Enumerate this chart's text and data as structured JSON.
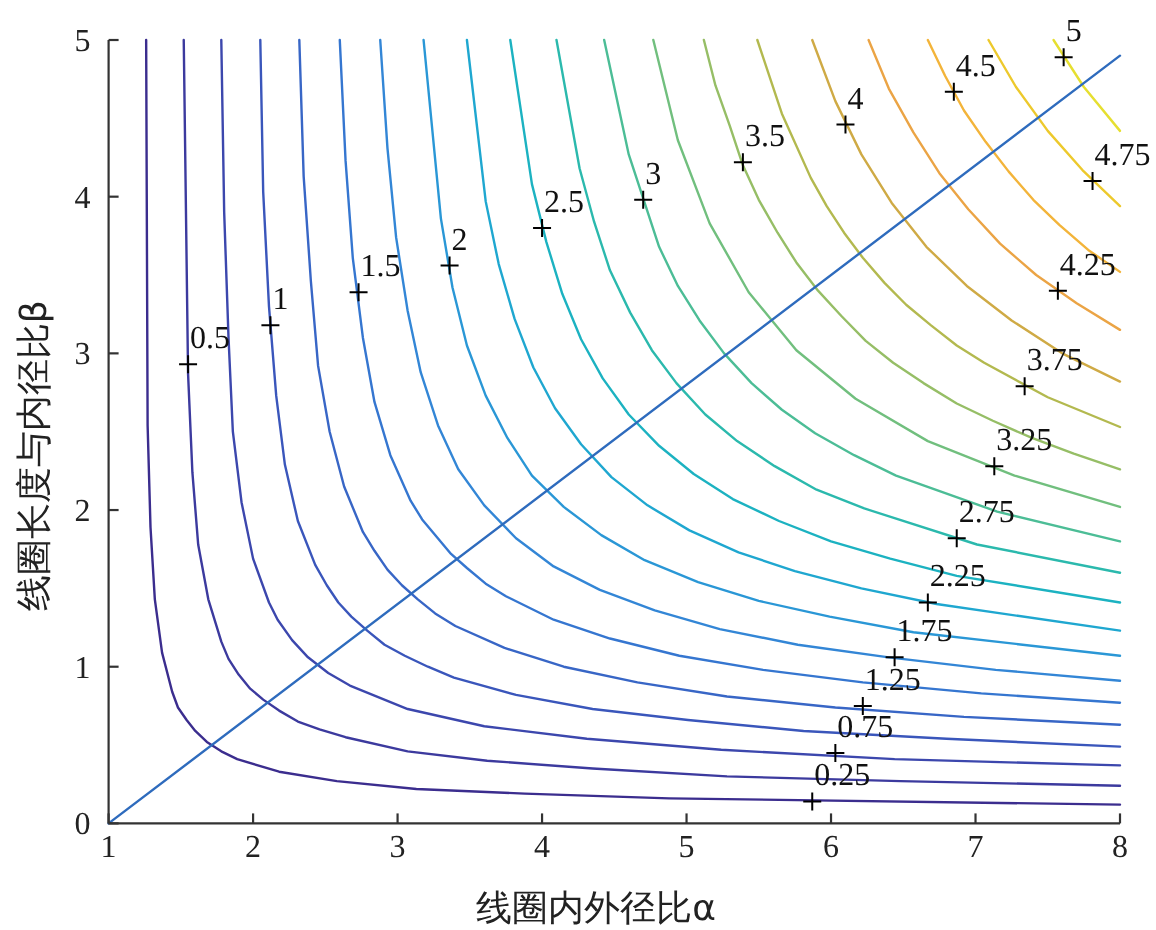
{
  "chart_data": {
    "type": "line",
    "xlabel": "线圈内外径比α",
    "ylabel": "线圈长度与内径比β",
    "xlim": [
      1,
      8
    ],
    "ylim": [
      0,
      5
    ],
    "xticks": [
      1,
      2,
      3,
      4,
      5,
      6,
      7,
      8
    ],
    "yticks": [
      0,
      1,
      2,
      3,
      4,
      5
    ],
    "series": [
      {
        "color": "#3b2d8e",
        "x": [
          1.26,
          1.27,
          1.29,
          1.32,
          1.37,
          1.44,
          1.48,
          1.54,
          1.6,
          1.68,
          1.78,
          1.89,
          2.18,
          2.58,
          3.13,
          3.88,
          4.88,
          8
        ],
        "values": [
          5,
          2.54,
          1.89,
          1.43,
          1.09,
          0.84,
          0.74,
          0.66,
          0.59,
          0.52,
          0.46,
          0.41,
          0.33,
          0.27,
          0.22,
          0.19,
          0.16,
          0.12
        ]
      },
      {
        "color": "#3c3a9e",
        "x": [
          1.52,
          1.55,
          1.58,
          1.62,
          1.69,
          1.78,
          1.83,
          1.9,
          1.98,
          2.07,
          2.18,
          2.31,
          2.46,
          2.64,
          3.07,
          3.62,
          4.35,
          5.28,
          6.48,
          8
        ],
        "values": [
          5,
          2.87,
          2.24,
          1.78,
          1.43,
          1.16,
          1.05,
          0.95,
          0.86,
          0.79,
          0.72,
          0.65,
          0.6,
          0.55,
          0.46,
          0.4,
          0.35,
          0.3,
          0.27,
          0.24
        ]
      },
      {
        "color": "#3c47ad",
        "x": [
          1.78,
          1.8,
          1.83,
          1.86,
          1.92,
          2,
          2.11,
          2.17,
          2.27,
          2.38,
          2.52,
          2.67,
          3.07,
          3.6,
          4.31,
          5.24,
          6.44,
          8
        ],
        "values": [
          5,
          3.9,
          3.1,
          2.5,
          2.05,
          1.69,
          1.41,
          1.3,
          1.17,
          1.06,
          0.96,
          0.88,
          0.73,
          0.62,
          0.54,
          0.47,
          0.41,
          0.37
        ]
      },
      {
        "color": "#3a56bb",
        "x": [
          2.05,
          2.07,
          2.11,
          2.16,
          2.22,
          2.31,
          2.43,
          2.51,
          2.59,
          2.68,
          2.79,
          2.91,
          3.05,
          3.21,
          3.39,
          3.82,
          4.35,
          5.01,
          5.81,
          6.8,
          8
        ],
        "values": [
          5,
          4.03,
          3.3,
          2.73,
          2.29,
          1.93,
          1.65,
          1.52,
          1.41,
          1.32,
          1.23,
          1.14,
          1.07,
          1,
          0.93,
          0.82,
          0.73,
          0.66,
          0.59,
          0.54,
          0.49
        ]
      },
      {
        "color": "#3866c6",
        "x": [
          2.32,
          2.35,
          2.4,
          2.45,
          2.53,
          2.63,
          2.76,
          2.84,
          2.93,
          3.03,
          3.14,
          3.26,
          3.4,
          3.74,
          4.15,
          4.66,
          5.28,
          6.03,
          6.92,
          8
        ],
        "values": [
          5,
          4.13,
          3.46,
          2.92,
          2.5,
          2.15,
          1.86,
          1.74,
          1.62,
          1.52,
          1.43,
          1.34,
          1.26,
          1.12,
          1,
          0.9,
          0.81,
          0.74,
          0.68,
          0.63
        ]
      },
      {
        "color": "#3576d0",
        "x": [
          2.6,
          2.64,
          2.69,
          2.76,
          2.84,
          2.95,
          3.09,
          3.17,
          3.27,
          3.37,
          3.48,
          3.61,
          3.75,
          4.08,
          4.47,
          4.95,
          5.53,
          6.22,
          7.04,
          8
        ],
        "values": [
          5,
          4.23,
          3.61,
          3.1,
          2.69,
          2.35,
          2.06,
          1.94,
          1.83,
          1.72,
          1.63,
          1.53,
          1.45,
          1.3,
          1.18,
          1.07,
          0.98,
          0.9,
          0.83,
          0.77
        ]
      },
      {
        "color": "#3386d6",
        "x": [
          2.88,
          2.93,
          2.99,
          3.07,
          3.16,
          3.28,
          3.42,
          3.6,
          3.82,
          4.08,
          4.4,
          4.78,
          5.23,
          5.77,
          6.4,
          7.14,
          8
        ],
        "values": [
          5,
          4.31,
          3.74,
          3.27,
          2.88,
          2.54,
          2.26,
          2.03,
          1.82,
          1.64,
          1.49,
          1.36,
          1.24,
          1.14,
          1.06,
          0.98,
          0.91
        ]
      },
      {
        "color": "#2a97d6",
        "x": [
          3.18,
          3.3,
          3.38,
          3.48,
          3.61,
          3.76,
          3.93,
          4.15,
          4.41,
          4.71,
          5.08,
          5.5,
          5.99,
          6.57,
          8
        ],
        "values": [
          5,
          3.86,
          3.42,
          3.05,
          2.73,
          2.46,
          2.22,
          2.02,
          1.84,
          1.68,
          1.54,
          1.42,
          1.32,
          1.22,
          1.07
        ]
      },
      {
        "color": "#1fa7d0",
        "x": [
          3.48,
          3.61,
          3.7,
          3.81,
          3.94,
          4.09,
          4.27,
          4.48,
          4.73,
          5.02,
          5.36,
          5.75,
          6.21,
          6.73,
          8
        ],
        "values": [
          5,
          3.97,
          3.57,
          3.22,
          2.91,
          2.65,
          2.42,
          2.21,
          2.03,
          1.87,
          1.73,
          1.61,
          1.5,
          1.4,
          1.23
        ]
      },
      {
        "color": "#1cb2c1",
        "x": [
          3.78,
          3.93,
          4.03,
          4.14,
          4.27,
          4.42,
          4.6,
          4.81,
          5.05,
          5.32,
          5.64,
          6,
          6.41,
          6.87,
          8
        ],
        "values": [
          5,
          4.08,
          3.71,
          3.38,
          3.09,
          2.84,
          2.61,
          2.41,
          2.23,
          2.07,
          1.93,
          1.8,
          1.69,
          1.58,
          1.41
        ]
      },
      {
        "color": "#2bb9ad",
        "x": [
          4.1,
          4.26,
          4.36,
          4.47,
          4.61,
          4.76,
          4.93,
          5.13,
          5.35,
          5.61,
          5.9,
          6.23,
          7.01,
          8
        ],
        "values": [
          5,
          4.18,
          3.84,
          3.53,
          3.26,
          3.02,
          2.81,
          2.61,
          2.44,
          2.28,
          2.13,
          2.01,
          1.78,
          1.6
        ]
      },
      {
        "color": "#4cbd96",
        "x": [
          4.43,
          4.6,
          4.81,
          4.94,
          5.09,
          5.26,
          5.45,
          5.66,
          5.89,
          6.16,
          6.45,
          7.15,
          8
        ],
        "values": [
          5,
          4.27,
          3.68,
          3.43,
          3.21,
          3,
          2.81,
          2.64,
          2.49,
          2.35,
          2.22,
          1.99,
          1.8
        ]
      },
      {
        "color": "#71bf7e",
        "x": [
          4.77,
          4.94,
          5.16,
          5.43,
          5.76,
          6.17,
          6.67,
          7.27,
          8
        ],
        "values": [
          5,
          4.36,
          3.83,
          3.39,
          3.02,
          2.71,
          2.44,
          2.22,
          2.02
        ]
      },
      {
        "color": "#96be66",
        "x": [
          5.12,
          5.2,
          5.3,
          5.39,
          5.5,
          5.63,
          5.76,
          5.91,
          6.07,
          6.24,
          6.43,
          6.64,
          6.87,
          7.12,
          7.39,
          7.68,
          8
        ],
        "values": [
          5,
          4.71,
          4.45,
          4.2,
          3.98,
          3.77,
          3.58,
          3.4,
          3.24,
          3.08,
          2.94,
          2.81,
          2.68,
          2.57,
          2.46,
          2.36,
          2.26
        ]
      },
      {
        "color": "#b3b94f",
        "x": [
          5.49,
          5.66,
          5.86,
          5.97,
          6.09,
          6.22,
          6.37,
          6.52,
          6.69,
          6.87,
          7.06,
          7.5,
          8
        ],
        "values": [
          5,
          4.53,
          4.12,
          3.94,
          3.77,
          3.61,
          3.45,
          3.31,
          3.18,
          3.05,
          2.94,
          2.72,
          2.53
        ]
      },
      {
        "color": "#cfaa45",
        "x": [
          5.87,
          6.03,
          6.21,
          6.42,
          6.66,
          6.94,
          7.25,
          7.6,
          8
        ],
        "values": [
          5,
          4.61,
          4.27,
          3.96,
          3.68,
          3.43,
          3.21,
          3,
          2.82
        ]
      },
      {
        "color": "#eba445",
        "x": [
          6.26,
          6.4,
          6.57,
          6.75,
          6.95,
          7.17,
          7.42,
          7.7,
          8
        ],
        "values": [
          5,
          4.69,
          4.41,
          4.15,
          3.92,
          3.7,
          3.5,
          3.32,
          3.15
        ]
      },
      {
        "color": "#f3b43a",
        "x": [
          6.67,
          6.79,
          6.92,
          7.07,
          7.23,
          7.4,
          7.58,
          7.78,
          8
        ],
        "values": [
          5,
          4.77,
          4.55,
          4.35,
          4.16,
          3.98,
          3.82,
          3.66,
          3.52
        ]
      },
      {
        "color": "#edc92c",
        "x": [
          7.09,
          7.28,
          7.5,
          7.74,
          8
        ],
        "values": [
          5,
          4.7,
          4.42,
          4.17,
          3.94
        ]
      },
      {
        "color": "#e6df30",
        "x": [
          7.54,
          7.75,
          8
        ],
        "values": [
          5,
          4.7,
          4.42
        ]
      },
      {
        "color": "#2e6bbd",
        "x": [
          1,
          8
        ],
        "values": [
          0,
          4.9
        ]
      }
    ],
    "annotations": [
      {
        "text": "0.25",
        "x": 5.87,
        "y": 0.14
      },
      {
        "text": "0.5",
        "x": 1.55,
        "y": 2.93
      },
      {
        "text": "0.75",
        "x": 6.03,
        "y": 0.45
      },
      {
        "text": "1",
        "x": 2.12,
        "y": 3.18
      },
      {
        "text": "1.25",
        "x": 6.22,
        "y": 0.75
      },
      {
        "text": "1.5",
        "x": 2.73,
        "y": 3.39
      },
      {
        "text": "1.75",
        "x": 6.44,
        "y": 1.06
      },
      {
        "text": "2",
        "x": 3.36,
        "y": 3.56
      },
      {
        "text": "2.25",
        "x": 6.67,
        "y": 1.41
      },
      {
        "text": "2.5",
        "x": 4.0,
        "y": 3.8
      },
      {
        "text": "2.75",
        "x": 6.87,
        "y": 1.82
      },
      {
        "text": "3",
        "x": 4.7,
        "y": 3.98
      },
      {
        "text": "3.25",
        "x": 7.13,
        "y": 2.28
      },
      {
        "text": "3.5",
        "x": 5.39,
        "y": 4.22
      },
      {
        "text": "3.75",
        "x": 7.34,
        "y": 2.79
      },
      {
        "text": "4",
        "x": 6.1,
        "y": 4.46
      },
      {
        "text": "4.25",
        "x": 7.57,
        "y": 3.4
      },
      {
        "text": "4.5",
        "x": 6.85,
        "y": 4.67
      },
      {
        "text": "4.75",
        "x": 7.81,
        "y": 4.1
      },
      {
        "text": "5",
        "x": 7.61,
        "y": 4.89
      }
    ]
  }
}
